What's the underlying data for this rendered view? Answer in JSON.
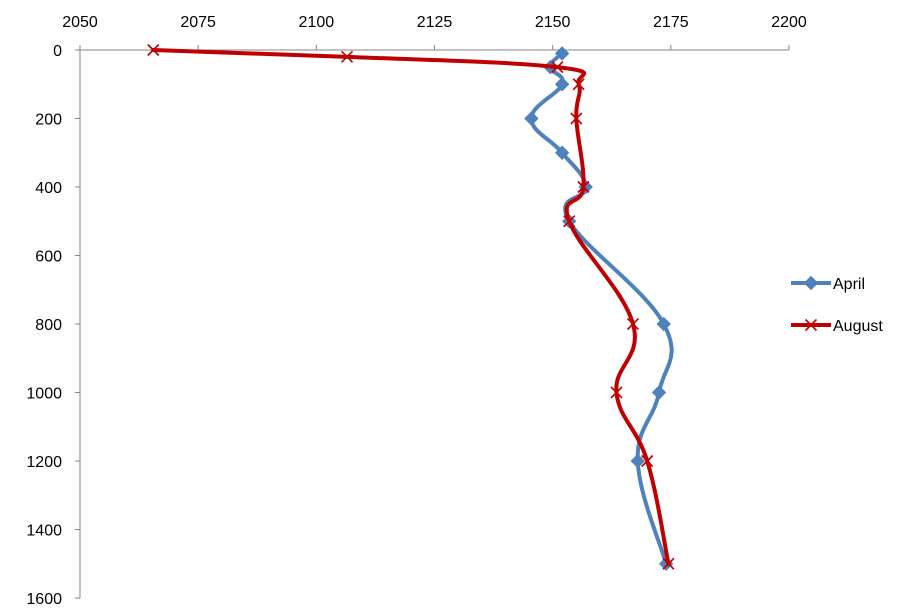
{
  "chart_data": {
    "type": "line",
    "x_axis_position": "top",
    "y_axis_inverted": true,
    "xlim": [
      2050,
      2200
    ],
    "ylim": [
      0,
      1600
    ],
    "x_ticks": [
      2050,
      2075,
      2100,
      2125,
      2150,
      2175,
      2200
    ],
    "y_ticks": [
      0,
      200,
      400,
      600,
      800,
      1000,
      1200,
      1400,
      1600
    ],
    "grid": false,
    "legend_position": "right",
    "series": [
      {
        "name": "April",
        "color": "#4F81BD",
        "marker": "diamond",
        "smooth": true,
        "points": [
          {
            "x": 2152,
            "y": 10
          },
          {
            "x": 2149.5,
            "y": 50
          },
          {
            "x": 2152,
            "y": 100
          },
          {
            "x": 2145.5,
            "y": 200
          },
          {
            "x": 2152,
            "y": 300
          },
          {
            "x": 2157,
            "y": 400
          },
          {
            "x": 2153.5,
            "y": 500
          },
          {
            "x": 2173.5,
            "y": 800
          },
          {
            "x": 2172.5,
            "y": 1000
          },
          {
            "x": 2168,
            "y": 1200
          },
          {
            "x": 2174,
            "y": 1500
          }
        ]
      },
      {
        "name": "August",
        "color": "#C00000",
        "marker": "x",
        "smooth": true,
        "points": [
          {
            "x": 2065.5,
            "y": 0
          },
          {
            "x": 2106.5,
            "y": 20
          },
          {
            "x": 2151,
            "y": 50
          },
          {
            "x": 2155.5,
            "y": 100
          },
          {
            "x": 2155,
            "y": 200
          },
          {
            "x": 2156.5,
            "y": 400
          },
          {
            "x": 2153.5,
            "y": 500
          },
          {
            "x": 2167,
            "y": 800
          },
          {
            "x": 2163.5,
            "y": 1000
          },
          {
            "x": 2170,
            "y": 1200
          },
          {
            "x": 2174.5,
            "y": 1500
          }
        ]
      }
    ]
  }
}
